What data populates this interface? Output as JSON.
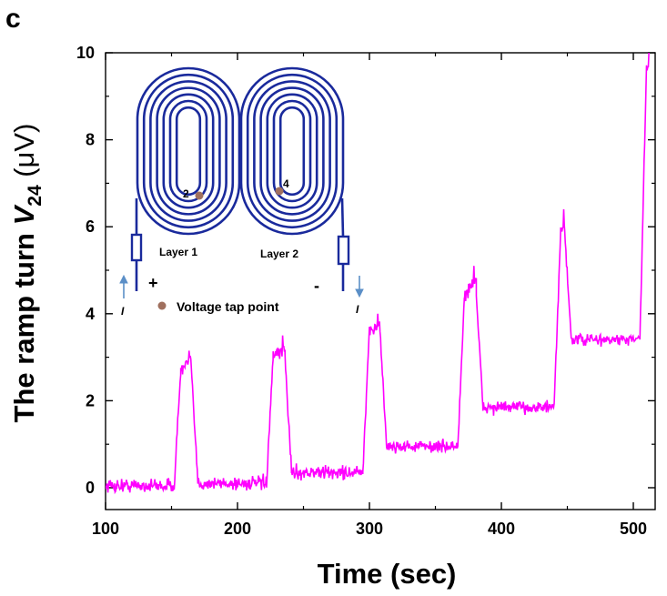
{
  "panel_letter": "c",
  "chart_data": {
    "type": "line",
    "xlabel": "Time (sec)",
    "ylabel": {
      "prefix": "The ramp turn ",
      "var": "V",
      "sub": "24",
      "unit": " (μV)"
    },
    "xlim": [
      100,
      525
    ],
    "ylim": [
      -0.5,
      10
    ],
    "x_ticks": [
      100,
      200,
      300,
      400,
      500
    ],
    "y_ticks": [
      0,
      2,
      4,
      6,
      8,
      10
    ],
    "grid": false,
    "line_color": "#ff00ff",
    "series": [
      {
        "segments": [
          {
            "x0": 100,
            "x1": 152,
            "a": 0.05,
            "b": 0.0,
            "noise": 0.15
          },
          {
            "x0": 157,
            "x1": 165,
            "a": 2.7,
            "b": 0.03,
            "noise": 0.15
          },
          {
            "x0": 170,
            "x1": 222,
            "a": 0.1,
            "b": 0.0,
            "noise": 0.15
          },
          {
            "x0": 227,
            "x1": 236,
            "a": 3.0,
            "b": 0.02,
            "noise": 0.15
          },
          {
            "x0": 241,
            "x1": 295,
            "a": 0.35,
            "b": 0.0,
            "noise": 0.15
          },
          {
            "x0": 300,
            "x1": 308,
            "a": 3.6,
            "b": 0.02,
            "noise": 0.15
          },
          {
            "x0": 313,
            "x1": 367,
            "a": 0.95,
            "b": 0.0,
            "noise": 0.13
          },
          {
            "x0": 372,
            "x1": 381,
            "a": 4.4,
            "b": 0.05,
            "noise": 0.15
          },
          {
            "x0": 386,
            "x1": 440,
            "a": 1.85,
            "b": 0.0,
            "noise": 0.13
          },
          {
            "x0": 445,
            "x1": 448,
            "a": 5.9,
            "b": 0.05,
            "noise": 0.15
          },
          {
            "x0": 453,
            "x1": 505,
            "a": 3.4,
            "b": 0.0,
            "noise": 0.13
          },
          {
            "x0": 510,
            "x1": 512,
            "a": 9.7,
            "b": 0.0,
            "noise": 0.1
          }
        ],
        "peaks": [
          {
            "x": 163,
            "y": 3.15
          },
          {
            "x": 234,
            "y": 3.5
          },
          {
            "x": 306,
            "y": 4.0
          },
          {
            "x": 379,
            "y": 5.1
          },
          {
            "x": 447,
            "y": 6.4
          },
          {
            "x": 512,
            "y": 10.0
          }
        ]
      }
    ],
    "inset": {
      "coil1_label": "Layer 1",
      "coil2_label": "Layer 2",
      "tap1_label": "2",
      "tap2_label": "4",
      "plus_label": "+",
      "minus_label": "-",
      "current_left": "I",
      "current_right": "I",
      "legend_label": "Voltage tap point",
      "coil_color": "#1a2a9c",
      "tap_color": "#a0705e",
      "arrow_color": "#5b8fc7"
    }
  }
}
